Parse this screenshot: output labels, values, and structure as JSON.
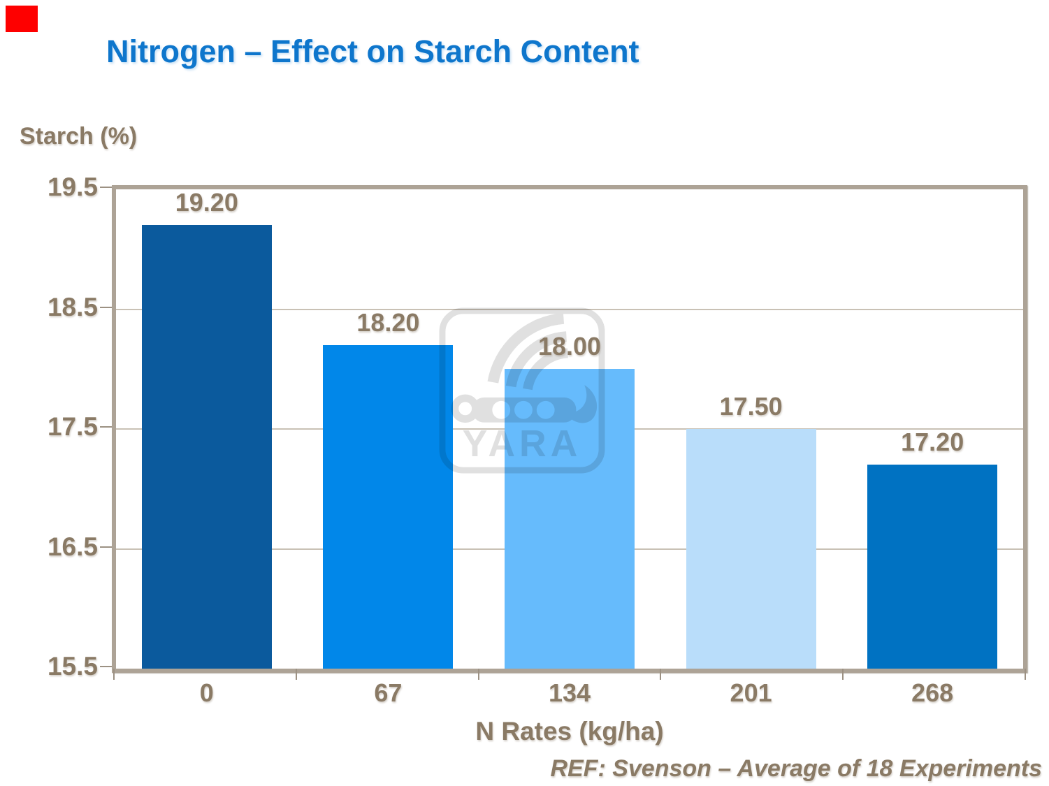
{
  "title": "Nitrogen – Effect on Starch Content",
  "corner_marker": {
    "color": "#fe0000"
  },
  "watermark": {
    "name": "yara-logo",
    "text": "YARA"
  },
  "footer": "REF: Svenson – Average of 18 Experiments",
  "chart_data": {
    "type": "bar",
    "title": "Nitrogen – Effect on Starch Content",
    "ylabel": "Starch (%)",
    "xlabel": "N Rates (kg/ha)",
    "categories": [
      "0",
      "67",
      "134",
      "201",
      "268"
    ],
    "values": [
      19.2,
      18.2,
      18.0,
      17.5,
      17.2
    ],
    "value_labels": [
      "19.20",
      "18.20",
      "18.00",
      "17.50",
      "17.20"
    ],
    "bar_colors": [
      "#0b5a9d",
      "#0187e9",
      "#66bbfc",
      "#b9ddfa",
      "#0072c2"
    ],
    "ylim": [
      15.5,
      19.5
    ],
    "yticks": [
      19.5,
      18.5,
      17.5,
      16.5,
      15.5
    ],
    "ytick_labels": [
      "19.5",
      "18.5",
      "17.5",
      "16.5",
      "15.5"
    ],
    "grid": true,
    "legend": false,
    "annotation": "REF: Svenson – Average of 18 Experiments"
  },
  "colors": {
    "title_text": "#0e76cc",
    "axis_text": "#8a7a65",
    "plot_border": "#ada396",
    "gridline": "#c9c1b5",
    "background": "#ffffff"
  }
}
